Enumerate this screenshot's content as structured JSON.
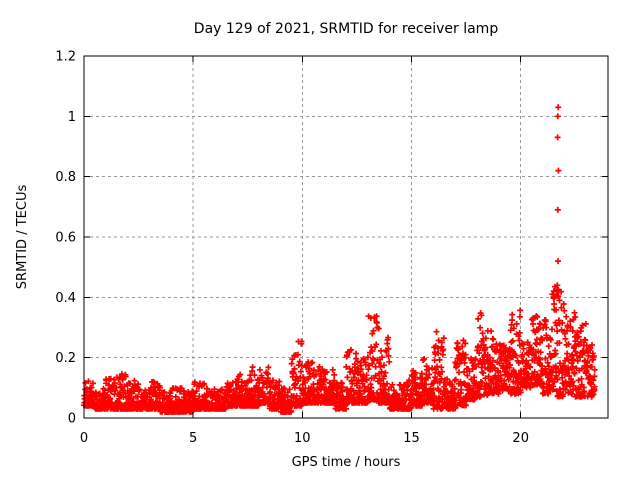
{
  "title": "Day 129 of 2021, SRMTID for receiver lamp",
  "xlabel": "GPS time / hours",
  "ylabel": "SRMTID / TECUs",
  "chart_data": {
    "type": "scatter",
    "title": "Day 129 of 2021, SRMTID for receiver lamp",
    "xlabel": "GPS time / hours",
    "ylabel": "SRMTID / TECUs",
    "marker": "plus",
    "grid": true,
    "legend": "none",
    "xlim": [
      0,
      24
    ],
    "ylim": [
      0,
      1.2
    ],
    "xticks": [
      0,
      5,
      10,
      15,
      20
    ],
    "yticks": [
      0,
      0.2,
      0.4,
      0.6,
      0.8,
      1,
      1.2
    ],
    "colors": {
      "points": "#ff0000",
      "grid": "#999999",
      "border": "#000000",
      "background": "#ffffff",
      "text": "#000000"
    },
    "series_description": "Dense noisy time series of SRMTID vs GPS hour; ~2800 samples at ~30 s cadence from 0 h to 23.4 h. Low quiet band ~0.03-0.1 TECUs before 16 h with bumps near 1.5, 7.5-8, 10, 12.3, 13 and 16 h; elevated activity 0.1-0.35 TECUs from 16 h onward; isolated outlier spike column near 21.7 h reaching 1.03 TECUs.",
    "envelope_bins": {
      "bin_hours": 0.5,
      "start_hour": 0,
      "end_hour": 23.4,
      "points_per_bin": 60,
      "min": [
        0.04,
        0.03,
        0.03,
        0.03,
        0.03,
        0.03,
        0.03,
        0.02,
        0.02,
        0.02,
        0.03,
        0.03,
        0.03,
        0.04,
        0.04,
        0.04,
        0.05,
        0.03,
        0.02,
        0.04,
        0.05,
        0.05,
        0.05,
        0.03,
        0.05,
        0.05,
        0.06,
        0.05,
        0.03,
        0.03,
        0.04,
        0.05,
        0.03,
        0.03,
        0.04,
        0.06,
        0.07,
        0.08,
        0.09,
        0.08,
        0.1,
        0.11,
        0.08,
        0.07,
        0.08,
        0.07,
        0.07
      ],
      "max": [
        0.13,
        0.1,
        0.13,
        0.15,
        0.13,
        0.1,
        0.12,
        0.09,
        0.1,
        0.09,
        0.12,
        0.1,
        0.1,
        0.12,
        0.15,
        0.17,
        0.17,
        0.13,
        0.1,
        0.26,
        0.22,
        0.18,
        0.16,
        0.12,
        0.23,
        0.2,
        0.34,
        0.28,
        0.11,
        0.13,
        0.16,
        0.2,
        0.29,
        0.13,
        0.26,
        0.2,
        0.35,
        0.3,
        0.25,
        0.36,
        0.3,
        0.35,
        0.33,
        0.44,
        0.35,
        0.32,
        0.25
      ]
    },
    "outliers": [
      [
        21.72,
        1.03
      ],
      [
        21.7,
        1.0
      ],
      [
        21.69,
        0.93
      ],
      [
        21.73,
        0.82
      ],
      [
        21.7,
        0.69
      ],
      [
        21.71,
        0.52
      ],
      [
        21.68,
        0.44
      ],
      [
        21.74,
        0.42
      ],
      [
        21.63,
        0.41
      ],
      [
        21.45,
        0.41
      ],
      [
        21.55,
        0.4
      ],
      [
        21.78,
        0.39
      ]
    ]
  }
}
